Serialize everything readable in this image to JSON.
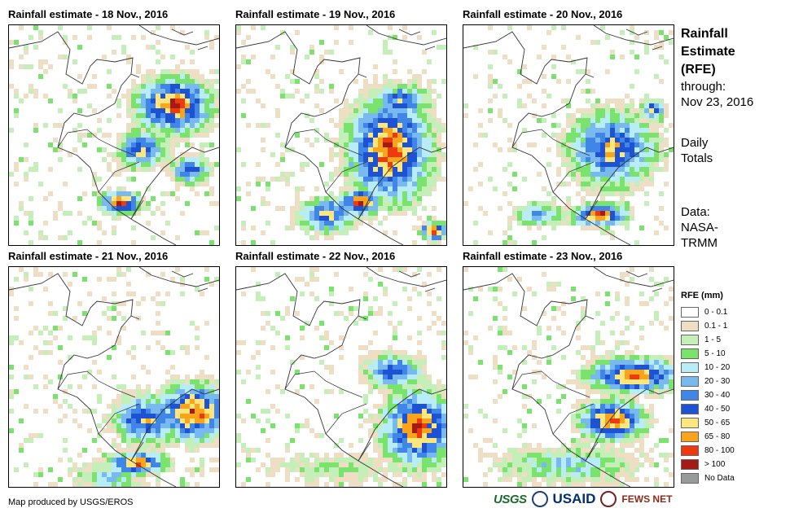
{
  "panels": [
    {
      "title": "Rainfall estimate - 18 Nov., 2016"
    },
    {
      "title": "Rainfall estimate - 19 Nov., 2016"
    },
    {
      "title": "Rainfall estimate - 20 Nov., 2016"
    },
    {
      "title": "Rainfall estimate - 21 Nov., 2016"
    },
    {
      "title": "Rainfall estimate - 22 Nov., 2016"
    },
    {
      "title": "Rainfall estimate - 23 Nov., 2016"
    }
  ],
  "side": {
    "title_lines": [
      "Rainfall",
      "Estimate",
      "(RFE)"
    ],
    "through_label": "through:",
    "through_date": "Nov 23, 2016",
    "totals_lines": [
      "Daily",
      "Totals"
    ],
    "data_lines": [
      "Data:",
      "NASA-",
      "TRMM"
    ]
  },
  "legend": {
    "title": "RFE (mm)",
    "items": [
      {
        "label": "0 - 0.1",
        "color": "#ffffff"
      },
      {
        "label": "0.1 - 1",
        "color": "#eedfc4"
      },
      {
        "label": "1 - 5",
        "color": "#c5efb9"
      },
      {
        "label": "5 - 10",
        "color": "#79e36e"
      },
      {
        "label": "10 - 20",
        "color": "#b8ecf7"
      },
      {
        "label": "20 - 30",
        "color": "#78b9f0"
      },
      {
        "label": "30 - 40",
        "color": "#3f86e8"
      },
      {
        "label": "40 - 50",
        "color": "#1d52d2"
      },
      {
        "label": "50 - 65",
        "color": "#fde77d"
      },
      {
        "label": "65 - 80",
        "color": "#f9a41a"
      },
      {
        "label": "80 - 100",
        "color": "#ef3a10"
      },
      {
        "label": "> 100",
        "color": "#a31a16"
      },
      {
        "label": "No Data",
        "color": "#9a9a9a"
      }
    ]
  },
  "footer": {
    "credit": "Map produced by USGS/EROS",
    "logo_usgs": "USGS",
    "logo_usaid": "USAID",
    "logo_fews": "FEWS NET"
  }
}
